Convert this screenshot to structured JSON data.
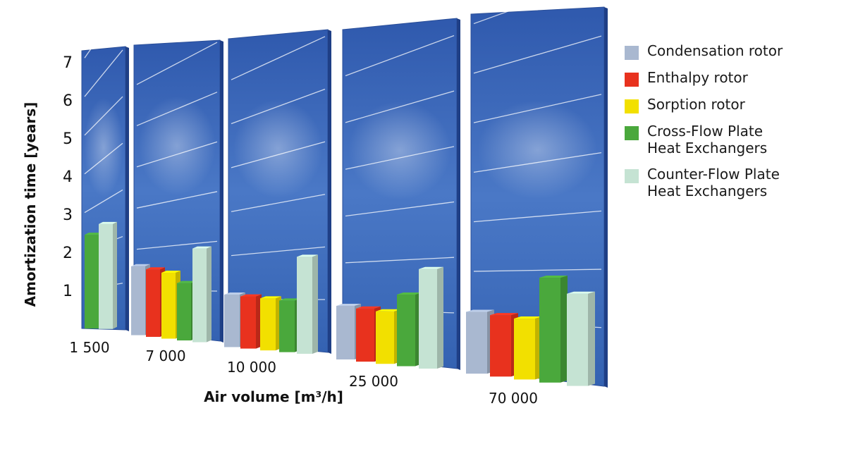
{
  "chart_data": {
    "type": "bar",
    "style": "3d-perspective",
    "ylabel": "Amortization time [years]",
    "xlabel": "Air volume [m³/h]",
    "yticks": [
      "1",
      "2",
      "3",
      "4",
      "5",
      "6",
      "7"
    ],
    "ylim": [
      0,
      7
    ],
    "grid": true,
    "legend_position": "right",
    "categories": [
      "1 500",
      "7 000",
      "10 000",
      "25 000",
      "70 000"
    ],
    "series": [
      {
        "name": "Condensation rotor",
        "color": "#a9b8d0",
        "values": [
          null,
          1.75,
          1.25,
          1.2,
          1.3
        ]
      },
      {
        "name": "Enthalpy rotor",
        "color": "#e8321e",
        "values": [
          null,
          1.65,
          1.2,
          1.15,
          1.25
        ]
      },
      {
        "name": "Sorption rotor",
        "color": "#f2e000",
        "values": [
          null,
          1.55,
          1.15,
          1.1,
          1.2
        ]
      },
      {
        "name": "Cross-Flow Plate Heat Exchangers",
        "color": "#4aa83c",
        "values": [
          2.5,
          1.3,
          1.1,
          1.45,
          2.0
        ]
      },
      {
        "name": "Counter-Flow Plate Heat Exchangers",
        "color": "#c5e3d3",
        "values": [
          2.6,
          2.05,
          2.0,
          1.95,
          1.7
        ]
      }
    ]
  },
  "legend": {
    "items": [
      {
        "label": "Condensation rotor",
        "color": "#a9b8d0"
      },
      {
        "label": "Enthalpy rotor",
        "color": "#e8321e"
      },
      {
        "label": "Sorption rotor",
        "color": "#f2e000"
      },
      {
        "label": "Cross-Flow Plate\nHeat Exchangers",
        "color": "#4aa83c"
      },
      {
        "label": "Counter-Flow Plate\nHeat Exchangers",
        "color": "#c5e3d3"
      }
    ]
  }
}
